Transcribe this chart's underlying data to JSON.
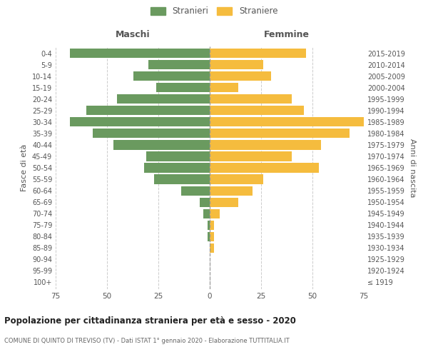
{
  "age_groups": [
    "100+",
    "95-99",
    "90-94",
    "85-89",
    "80-84",
    "75-79",
    "70-74",
    "65-69",
    "60-64",
    "55-59",
    "50-54",
    "45-49",
    "40-44",
    "35-39",
    "30-34",
    "25-29",
    "20-24",
    "15-19",
    "10-14",
    "5-9",
    "0-4"
  ],
  "birth_years": [
    "≤ 1919",
    "1920-1924",
    "1925-1929",
    "1930-1934",
    "1935-1939",
    "1940-1944",
    "1945-1949",
    "1950-1954",
    "1955-1959",
    "1960-1964",
    "1965-1969",
    "1970-1974",
    "1975-1979",
    "1980-1984",
    "1985-1989",
    "1990-1994",
    "1995-1999",
    "2000-2004",
    "2005-2009",
    "2010-2014",
    "2015-2019"
  ],
  "males": [
    0,
    0,
    0,
    0,
    1,
    1,
    3,
    5,
    14,
    27,
    32,
    31,
    47,
    57,
    68,
    60,
    45,
    26,
    37,
    30,
    68
  ],
  "females": [
    0,
    0,
    0,
    2,
    2,
    2,
    5,
    14,
    21,
    26,
    53,
    40,
    54,
    68,
    75,
    46,
    40,
    14,
    30,
    26,
    47
  ],
  "male_color": "#6a9a5f",
  "female_color": "#f5bc3e",
  "background_color": "#ffffff",
  "grid_color": "#cccccc",
  "title": "Popolazione per cittadinanza straniera per età e sesso - 2020",
  "subtitle": "COMUNE DI QUINTO DI TREVISO (TV) - Dati ISTAT 1° gennaio 2020 - Elaborazione TUTTITALIA.IT",
  "left_label": "Maschi",
  "right_label": "Femmine",
  "ylabel": "Fasce di età",
  "right_ylabel": "Anni di nascita",
  "legend_male": "Stranieri",
  "legend_female": "Straniere",
  "xlim": 75
}
